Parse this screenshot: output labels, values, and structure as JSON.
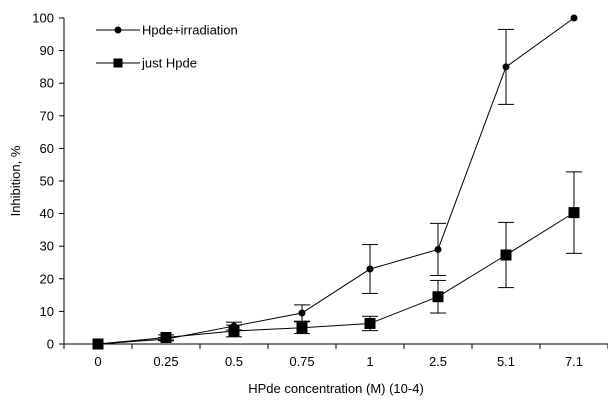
{
  "chart_data": {
    "type": "line",
    "title": "",
    "xlabel": "HPde concentration (M) (10-4)",
    "ylabel": "Inhibition, %",
    "categories": [
      "0",
      "0.25",
      "0.5",
      "0.75",
      "1",
      "2.5",
      "5.1",
      "7.1"
    ],
    "ylim": [
      0,
      100
    ],
    "yticks": [
      "0",
      "10",
      "20",
      "30",
      "40",
      "50",
      "60",
      "70",
      "80",
      "90",
      "100"
    ],
    "grid": false,
    "legend_position": "top-left",
    "series": [
      {
        "name": "Hpde+irradiation",
        "marker": "circle",
        "values": [
          0,
          1.5,
          5.5,
          9.5,
          23,
          29,
          85,
          100
        ],
        "errors": [
          0,
          0.5,
          1.2,
          2.5,
          7.5,
          8,
          11.5,
          0
        ]
      },
      {
        "name": "just Hpde",
        "marker": "square",
        "values": [
          0,
          2,
          4,
          5,
          6.3,
          14.5,
          27.3,
          40.3
        ],
        "errors": [
          0,
          0.8,
          1.8,
          1.8,
          2.2,
          5,
          10,
          12.5
        ]
      }
    ]
  }
}
